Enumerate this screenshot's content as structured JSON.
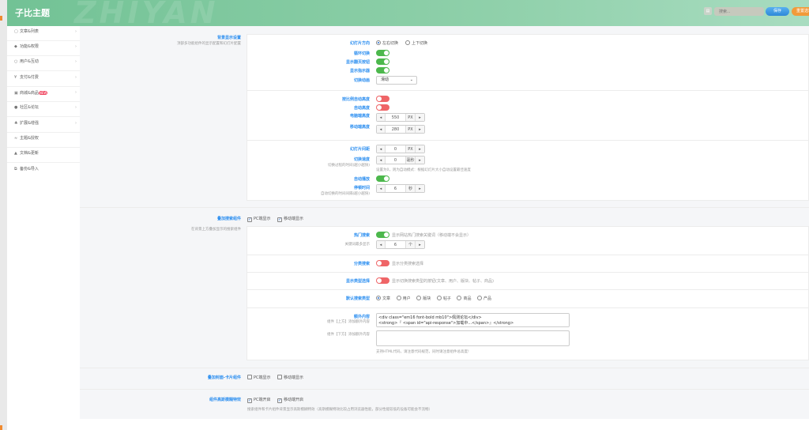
{
  "header": {
    "title": "子比主题",
    "watermark": "ZHIYAN",
    "search_placeholder": "搜索...",
    "save": "保存",
    "reset": "重置选项"
  },
  "sidebar": {
    "items": [
      {
        "label": "文章&列表",
        "icon": "book-icon"
      },
      {
        "label": "功能&权限",
        "icon": "shield-icon"
      },
      {
        "label": "用户&互动",
        "icon": "user-icon"
      },
      {
        "label": "支付&付费",
        "icon": "yen-icon"
      },
      {
        "label": "商城&商品",
        "icon": "shop-icon",
        "badge": "NEW"
      },
      {
        "label": "社区&论坛",
        "icon": "globe-icon"
      },
      {
        "label": "扩展&增强",
        "icon": "puzzle-icon"
      },
      {
        "label": "主题&授权",
        "icon": "chart-icon"
      },
      {
        "label": "文档&更新",
        "icon": "car-icon"
      },
      {
        "label": "备份&导入",
        "icon": "copy-icon"
      }
    ]
  },
  "bg": {
    "label": "背景显示设置",
    "desc": "顶部多功能组件的显示配置和幻灯片配置",
    "direction": {
      "label": "幻灯片方向",
      "options": [
        "左右切换",
        "上下切换"
      ],
      "selected": "左右切换"
    },
    "loop": {
      "label": "循环切换",
      "on": true
    },
    "pager": {
      "label": "显示翻页按钮",
      "on": true
    },
    "indicator": {
      "label": "显示指示器",
      "on": true
    },
    "anim": {
      "label": "切换动画",
      "value": "滑动"
    },
    "ratio": {
      "label": "按比例自动高度",
      "on": false
    },
    "autoh": {
      "label": "自动高度",
      "on": false
    },
    "pch": {
      "label": "电脑端高度",
      "value": "550",
      "unit": "PX"
    },
    "mh": {
      "label": "移动端高度",
      "value": "280",
      "unit": "PX"
    },
    "gap": {
      "label": "幻灯片间距",
      "value": "0",
      "unit": "PX"
    },
    "speed": {
      "label": "切换速度",
      "desc": "切换过程的时间(越小越快)",
      "value": "0",
      "unit": "毫秒",
      "note": "设置为0，则为自动模式：根据幻灯片大小自动设置最佳速度"
    },
    "autoplay": {
      "label": "自动播放",
      "on": true
    },
    "pause": {
      "label": "停顿时间",
      "desc": "自动切换的时间间隔(越小越快)",
      "value": "6",
      "unit": "秒"
    }
  },
  "search": {
    "label": "叠加搜索组件",
    "desc": "在背景上方叠加显示的搜索组件",
    "pc": "PC端显示",
    "mobile": "移动端显示",
    "pc_checked": true,
    "mobile_checked": true,
    "hot": {
      "label": "热门搜索",
      "on": true,
      "text": "显示网站热门搜索关键词（移动端不会显示）",
      "max_label": "关键词最多显示",
      "max": "6",
      "unit": "个"
    },
    "cat": {
      "label": "分类搜索",
      "on": false,
      "text": "显示分类搜索选择"
    },
    "type": {
      "label": "显示类型选择",
      "on": false,
      "text": "显示切换搜索类型的按钮(文章、用户、版块、帖子、商品)"
    },
    "default": {
      "label": "默认搜索类型",
      "options": [
        "文章",
        "用户",
        "版块",
        "帖子",
        "商品",
        "产品"
      ],
      "selected": "文章"
    },
    "extra": {
      "label": "额外内容",
      "top_desc": "组件【上方】添加额外内容",
      "bottom_desc": "组件【下方】添加额外内容",
      "top_value": "<div class=\"em16 font-bold mb10\">佩测论坛</div>\n<strong>『 <span id=\"api-response\">加载中...</span>』</strong>",
      "bottom_value": "",
      "note": "支持HTML代码，请注意代码规范，同时请注意组件总高度!"
    }
  },
  "card": {
    "label": "叠加封面-卡片组件",
    "pc": "PC端显示",
    "mobile": "移动端显示",
    "pc_checked": false,
    "mobile_checked": false
  },
  "blur": {
    "label": "组件高斯模糊特效",
    "pc": "PC端开启",
    "mobile": "移动端开启",
    "pc_checked": true,
    "mobile_checked": true,
    "desc": "搜索组件和卡片组件背景显示高斯模糊特效（高斯模糊特效比较占用浏览器性能，部分性能较低的设备可能会不流畅）"
  }
}
